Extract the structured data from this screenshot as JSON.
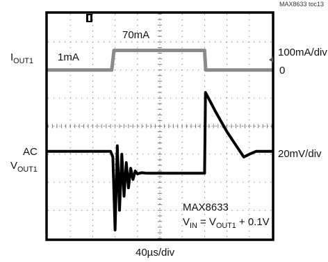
{
  "header": {
    "part_label": "MAX8633 toc13"
  },
  "left_labels": {
    "iout_main": "I",
    "iout_sub": "OUT1",
    "ac_label": "AC",
    "vout_main": "V",
    "vout_sub": "OUT1"
  },
  "right_labels": {
    "scale_top": "100mA/div",
    "zero": "0",
    "scale_bottom": "20mV/div"
  },
  "annotations": {
    "one_ma": "1mA",
    "seventy_ma": "70mA",
    "part": "MAX8633",
    "vin_main": "V",
    "vin_sub": "IN",
    "eq_mid": " = V",
    "vout_sub": "OUT1",
    "eq_tail": " + 0.1V"
  },
  "time_scale": "40µs/div",
  "trigger_marker": "T",
  "colors": {
    "trace_current": "#8a8a8a",
    "trace_voltage": "#000000",
    "grid": "#7a7a7a",
    "frame": "#000000"
  },
  "chart_data": {
    "type": "line",
    "x_unit": "div (40µs/div)",
    "xlim": [
      0,
      10
    ],
    "ylim": [
      -4,
      4
    ],
    "series": [
      {
        "x": [
          0,
          2.85,
          2.95,
          7.0,
          7.05,
          10
        ],
        "values": [
          2.0,
          2.0,
          2.7,
          2.7,
          2.0,
          2.0
        ]
      },
      {
        "x": [
          0,
          2.8,
          2.9,
          3.0,
          3.1,
          3.2,
          3.3,
          3.4,
          3.5,
          3.6,
          3.7,
          3.8,
          3.9,
          4.0,
          4.2,
          4.4,
          7.0,
          7.04,
          7.5,
          8.0,
          8.5,
          8.75,
          9.0,
          9.3,
          10
        ],
        "values": [
          -0.9,
          -0.9,
          -1.1,
          -3.7,
          -0.7,
          -3.0,
          -1.0,
          -2.5,
          -1.3,
          -2.2,
          -1.5,
          -1.9,
          -1.6,
          -1.7,
          -1.66,
          -1.68,
          -1.68,
          1.2,
          0.5,
          -0.2,
          -0.8,
          -1.1,
          -1.0,
          -0.9,
          -0.9
        ]
      }
    ]
  }
}
